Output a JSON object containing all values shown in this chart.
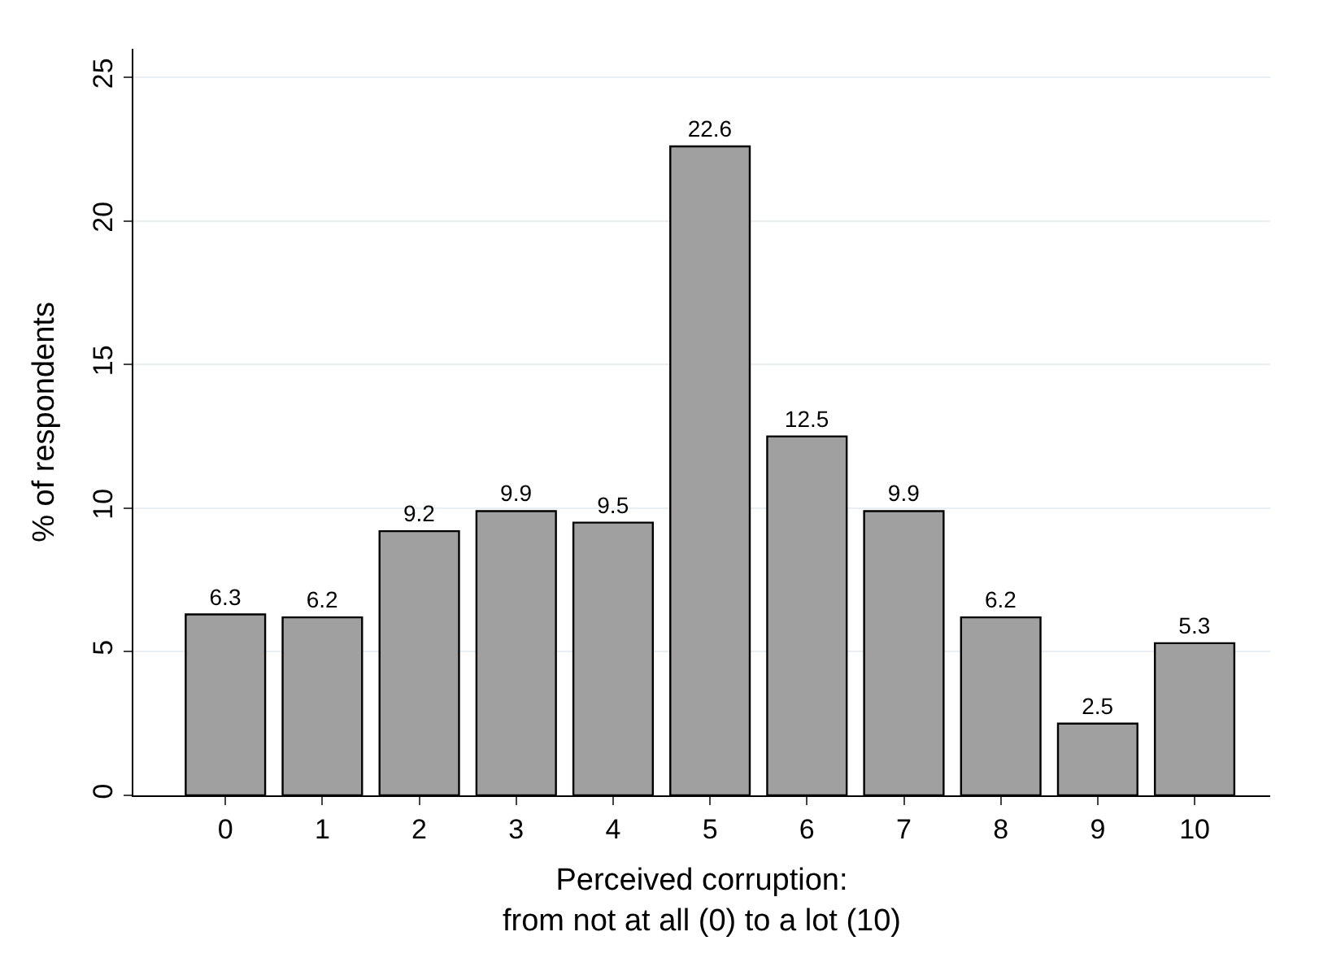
{
  "chart_data": {
    "type": "bar",
    "xlabel": "Perceived corruption:\nfrom not at all (0) to a lot (10)",
    "ylabel": "% of respondents",
    "categories": [
      "0",
      "1",
      "2",
      "3",
      "4",
      "5",
      "6",
      "7",
      "8",
      "9",
      "10"
    ],
    "values": [
      6.3,
      6.2,
      9.2,
      9.9,
      9.5,
      22.6,
      12.5,
      9.9,
      6.2,
      2.5,
      5.3
    ],
    "color": "#a0a0a0",
    "ylim": [
      0,
      26
    ],
    "yticks": [
      0,
      5,
      10,
      15,
      20,
      25
    ],
    "grid": "y",
    "data_labels": true,
    "legend": false
  }
}
